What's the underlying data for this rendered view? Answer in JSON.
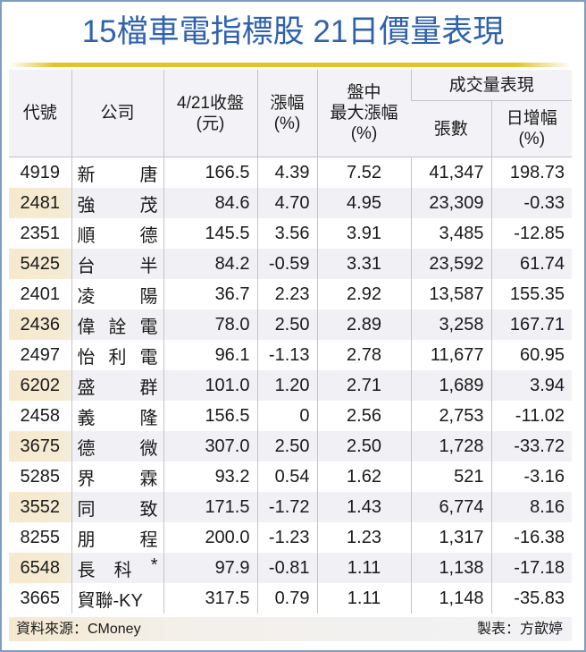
{
  "title": "15檔車電指標股 21日價量表現",
  "colors": {
    "title": "#2f62ad",
    "accent_bar": "#e3c32a",
    "frame": "#7f9cc4",
    "header_bg": "#f3f3f7",
    "alt_row_bg": "#f1f1f5",
    "code_highlight": "#f6e9cf"
  },
  "table": {
    "headers": {
      "code": "代號",
      "company": "公司",
      "close_line1": "4/21收盤",
      "close_line2": "(元)",
      "change_line1": "漲幅",
      "change_line2": "(%)",
      "intraday_line1": "盤中",
      "intraday_line2": "最大漲幅",
      "intraday_line3": "(%)",
      "volume_group": "成交量表現",
      "volume_lots": "張數",
      "volume_daily_line1": "日增幅",
      "volume_daily_line2": "(%)"
    },
    "rows": [
      {
        "code": "4919",
        "company": [
          "新",
          "唐"
        ],
        "close": "166.5",
        "change": "4.39",
        "intraday_max": "7.52",
        "lots": "41,347",
        "daily_increase": "198.73"
      },
      {
        "code": "2481",
        "company": [
          "強",
          "茂"
        ],
        "close": "84.6",
        "change": "4.70",
        "intraday_max": "4.95",
        "lots": "23,309",
        "daily_increase": "-0.33"
      },
      {
        "code": "2351",
        "company": [
          "順",
          "德"
        ],
        "close": "145.5",
        "change": "3.56",
        "intraday_max": "3.91",
        "lots": "3,485",
        "daily_increase": "-12.85"
      },
      {
        "code": "5425",
        "company": [
          "台",
          "半"
        ],
        "close": "84.2",
        "change": "-0.59",
        "intraday_max": "3.31",
        "lots": "23,592",
        "daily_increase": "61.74"
      },
      {
        "code": "2401",
        "company": [
          "凌",
          "陽"
        ],
        "close": "36.7",
        "change": "2.23",
        "intraday_max": "2.92",
        "lots": "13,587",
        "daily_increase": "155.35"
      },
      {
        "code": "2436",
        "company": [
          "偉",
          "詮",
          "電"
        ],
        "close": "78.0",
        "change": "2.50",
        "intraday_max": "2.89",
        "lots": "3,258",
        "daily_increase": "167.71"
      },
      {
        "code": "2497",
        "company": [
          "怡",
          "利",
          "電"
        ],
        "close": "96.1",
        "change": "-1.13",
        "intraday_max": "2.78",
        "lots": "11,677",
        "daily_increase": "60.95"
      },
      {
        "code": "6202",
        "company": [
          "盛",
          "群"
        ],
        "close": "101.0",
        "change": "1.20",
        "intraday_max": "2.71",
        "lots": "1,689",
        "daily_increase": "3.94"
      },
      {
        "code": "2458",
        "company": [
          "義",
          "隆"
        ],
        "close": "156.5",
        "change": "0",
        "intraday_max": "2.56",
        "lots": "2,753",
        "daily_increase": "-11.02"
      },
      {
        "code": "3675",
        "company": [
          "德",
          "微"
        ],
        "close": "307.0",
        "change": "2.50",
        "intraday_max": "2.50",
        "lots": "1,728",
        "daily_increase": "-33.72"
      },
      {
        "code": "5285",
        "company": [
          "界",
          "霖"
        ],
        "close": "93.2",
        "change": "0.54",
        "intraday_max": "1.62",
        "lots": "521",
        "daily_increase": "-3.16"
      },
      {
        "code": "3552",
        "company": [
          "同",
          "致"
        ],
        "close": "171.5",
        "change": "-1.72",
        "intraday_max": "1.43",
        "lots": "6,774",
        "daily_increase": "8.16"
      },
      {
        "code": "8255",
        "company": [
          "朋",
          "程"
        ],
        "close": "200.0",
        "change": "-1.23",
        "intraday_max": "1.23",
        "lots": "1,317",
        "daily_increase": "-16.38"
      },
      {
        "code": "6548",
        "company": [
          "長",
          "科",
          "*"
        ],
        "close": "97.9",
        "change": "-0.81",
        "intraday_max": "1.11",
        "lots": "1,138",
        "daily_increase": "-17.18"
      },
      {
        "code": "3665",
        "company": [
          "貿聯-KY"
        ],
        "close": "317.5",
        "change": "0.79",
        "intraday_max": "1.11",
        "lots": "1,148",
        "daily_increase": "-35.83"
      }
    ]
  },
  "footer": {
    "source": "資料來源：CMoney",
    "maker": "製表：方歆婷"
  }
}
